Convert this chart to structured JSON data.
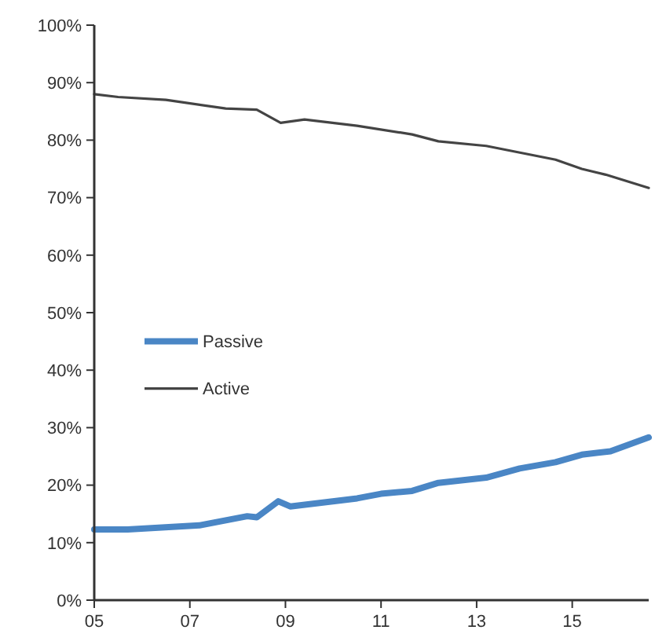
{
  "chart_data": {
    "type": "line",
    "xlim": [
      2005,
      2016.6
    ],
    "ylim": [
      0,
      100
    ],
    "xticks": [
      {
        "value": 2005,
        "label": "05"
      },
      {
        "value": 2007,
        "label": "07"
      },
      {
        "value": 2009,
        "label": "09"
      },
      {
        "value": 2011,
        "label": "11"
      },
      {
        "value": 2013,
        "label": "13"
      },
      {
        "value": 2015,
        "label": "15"
      }
    ],
    "yticks": [
      {
        "value": 0,
        "label": "0%"
      },
      {
        "value": 10,
        "label": "10%"
      },
      {
        "value": 20,
        "label": "20%"
      },
      {
        "value": 30,
        "label": "30%"
      },
      {
        "value": 40,
        "label": "40%"
      },
      {
        "value": 50,
        "label": "50%"
      },
      {
        "value": 60,
        "label": "60%"
      },
      {
        "value": 70,
        "label": "70%"
      },
      {
        "value": 80,
        "label": "80%"
      },
      {
        "value": 90,
        "label": "90%"
      },
      {
        "value": 100,
        "label": "100%"
      }
    ],
    "grid": false,
    "legend": "left",
    "marker": "none",
    "line_style": "solid",
    "series": [
      {
        "name": "Passive",
        "color": "#4a86c5",
        "x": [
          2005,
          2005.7,
          2007.2,
          2008.2,
          2008.4,
          2008.85,
          2009.1,
          2010.5,
          2011,
          2011.65,
          2012.2,
          2013.2,
          2013.9,
          2014.65,
          2015.2,
          2015.8,
          2016.6
        ],
        "values": [
          12.3,
          12.3,
          13,
          14.6,
          14.4,
          17.2,
          16.3,
          17.7,
          18.5,
          19,
          20.4,
          21.3,
          22.9,
          24,
          25.3,
          25.9,
          28.3
        ]
      },
      {
        "name": "Active",
        "color": "#444444",
        "x": [
          2005,
          2005.5,
          2006.5,
          2007.75,
          2008.4,
          2008.9,
          2009.4,
          2010.5,
          2011.65,
          2012.2,
          2013.2,
          2014.65,
          2015.2,
          2015.7,
          2016.6
        ],
        "values": [
          88,
          87.5,
          87,
          85.5,
          85.3,
          83,
          83.6,
          82.5,
          81,
          79.8,
          79,
          76.6,
          75,
          74,
          71.7
        ]
      }
    ]
  }
}
